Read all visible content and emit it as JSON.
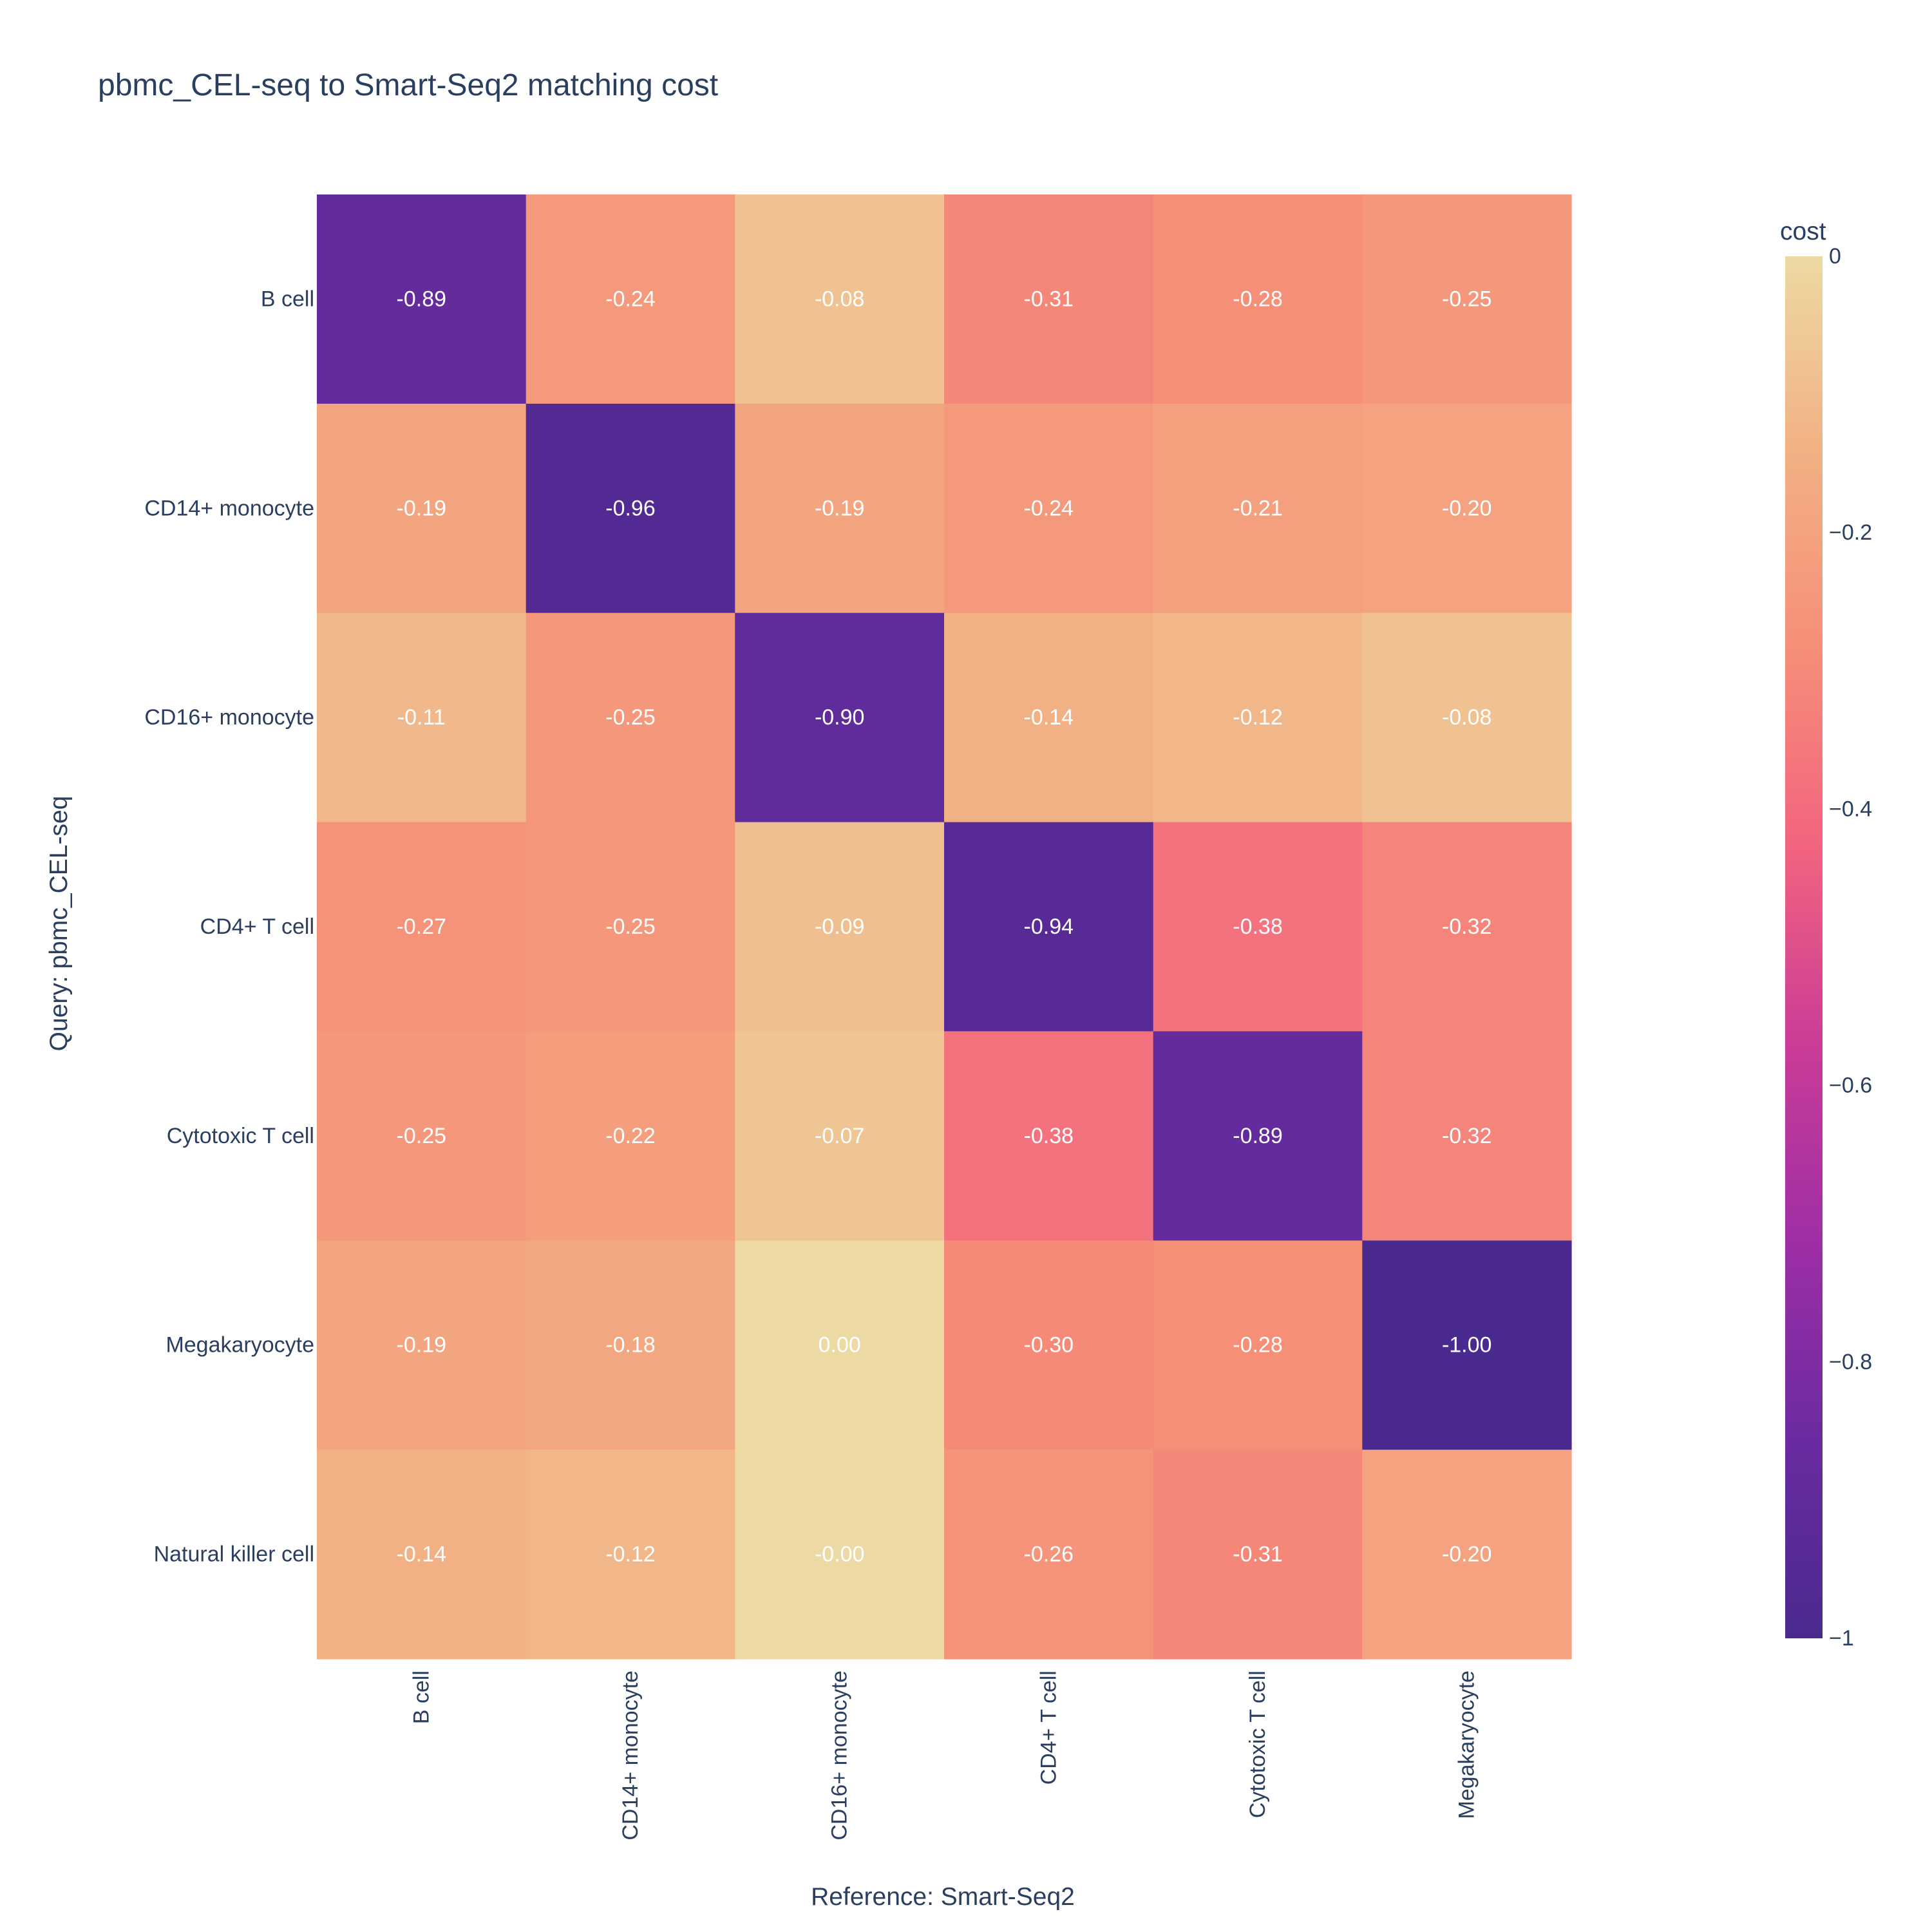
{
  "chart_data": {
    "type": "heatmap",
    "title": "pbmc_CEL-seq to Smart-Seq2 matching cost",
    "xlabel": "Reference: Smart-Seq2",
    "ylabel": "Query: pbmc_CEL-seq",
    "x_categories": [
      "B cell",
      "CD14+ monocyte",
      "CD16+ monocyte",
      "CD4+ T cell",
      "Cytotoxic T cell",
      "Megakaryocyte"
    ],
    "y_categories": [
      "B cell",
      "CD14+ monocyte",
      "CD16+ monocyte",
      "CD4+ T cell",
      "Cytotoxic T cell",
      "Megakaryocyte",
      "Natural killer cell"
    ],
    "values": [
      [
        -0.89,
        -0.24,
        -0.08,
        -0.31,
        -0.28,
        -0.25
      ],
      [
        -0.19,
        -0.96,
        -0.19,
        -0.24,
        -0.21,
        -0.2
      ],
      [
        -0.11,
        -0.25,
        -0.9,
        -0.14,
        -0.12,
        -0.08
      ],
      [
        -0.27,
        -0.25,
        -0.09,
        -0.94,
        -0.38,
        -0.32
      ],
      [
        -0.25,
        -0.22,
        -0.07,
        -0.38,
        -0.89,
        -0.32
      ],
      [
        -0.19,
        -0.18,
        0.0,
        -0.3,
        -0.28,
        -1.0
      ],
      [
        -0.14,
        -0.12,
        -0.0,
        -0.26,
        -0.31,
        -0.2
      ]
    ],
    "cell_labels": [
      [
        "-0.89",
        "-0.24",
        "-0.08",
        "-0.31",
        "-0.28",
        "-0.25"
      ],
      [
        "-0.19",
        "-0.96",
        "-0.19",
        "-0.24",
        "-0.21",
        "-0.20"
      ],
      [
        "-0.11",
        "-0.25",
        "-0.90",
        "-0.14",
        "-0.12",
        "-0.08"
      ],
      [
        "-0.27",
        "-0.25",
        "-0.09",
        "-0.94",
        "-0.38",
        "-0.32"
      ],
      [
        "-0.25",
        "-0.22",
        "-0.07",
        "-0.38",
        "-0.89",
        "-0.32"
      ],
      [
        "-0.19",
        "-0.18",
        "0.00",
        "-0.30",
        "-0.28",
        "-1.00"
      ],
      [
        "-0.14",
        "-0.12",
        "-0.00",
        "-0.26",
        "-0.31",
        "-0.20"
      ]
    ],
    "colorscale": [
      "#EDD9A3",
      "#F2B084",
      "#F68E78",
      "#F2637F",
      "#CA3C97",
      "#9E2EA6",
      "#6A2BA0",
      "#4A2A8E"
    ],
    "colorbar": {
      "title": "cost",
      "range": [
        -1,
        0
      ],
      "ticks": [
        0,
        -0.2,
        -0.4,
        -0.6,
        -0.8,
        -1
      ],
      "tick_labels": [
        "0",
        "−0.2",
        "−0.4",
        "−0.6",
        "−0.8",
        "−1"
      ]
    },
    "text_color": "#ffffff",
    "axis_text_color": "#2a3f5f"
  }
}
